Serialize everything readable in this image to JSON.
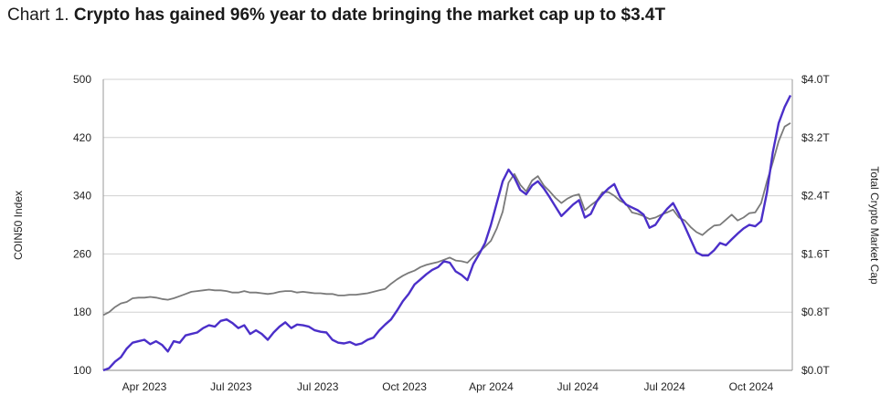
{
  "title": {
    "prefix": "Chart 1.",
    "headline": "Crypto has gained 96% year to date bringing the market cap up to $3.4T"
  },
  "chart_data": {
    "type": "line",
    "title": "Crypto has gained 96% year to date bringing the market cap up to $3.4T",
    "ylabel": "COIN50 Index",
    "y2label": "Total Crypto Market Cap",
    "ylim": [
      100,
      500
    ],
    "y2lim": [
      0.0,
      4.0
    ],
    "yticks": [
      "100",
      "180",
      "260",
      "340",
      "420",
      "500"
    ],
    "y2ticks": [
      "$0.0T",
      "$0.8T",
      "$1.6T",
      "$2.4T",
      "$3.2T",
      "$4.0T"
    ],
    "xticks": [
      "Apr 2023",
      "Jul 2023",
      "Jul 2023",
      "Oct 2023",
      "Apr 2024",
      "Jul 2024",
      "Jul 2024",
      "Oct 2024"
    ],
    "grid": "horizontal",
    "series_colors": [
      "#4b2fc9",
      "#7a7a7a"
    ],
    "series": [
      {
        "axis": "left",
        "values": [
          100,
          103,
          112,
          118,
          130,
          138,
          140,
          142,
          136,
          140,
          135,
          126,
          140,
          138,
          148,
          150,
          152,
          158,
          162,
          160,
          168,
          170,
          165,
          158,
          162,
          150,
          155,
          150,
          142,
          152,
          160,
          166,
          158,
          163,
          162,
          160,
          155,
          153,
          152,
          142,
          138,
          137,
          139,
          135,
          137,
          142,
          145,
          155,
          163,
          170,
          182,
          195,
          205,
          218,
          225,
          232,
          238,
          242,
          250,
          248,
          236,
          231,
          224,
          246,
          260,
          275,
          300,
          330,
          360,
          376,
          365,
          348,
          342,
          354,
          360,
          350,
          338,
          325,
          312,
          320,
          328,
          334,
          310,
          315,
          332,
          342,
          350,
          356,
          338,
          328,
          324,
          320,
          314,
          296,
          300,
          312,
          322,
          330,
          315,
          298,
          280,
          262,
          258,
          258,
          265,
          275,
          272,
          280,
          288,
          295,
          300,
          298,
          305,
          345,
          400,
          440,
          462,
          478
        ]
      },
      {
        "axis": "right",
        "values": [
          0.76,
          0.8,
          0.87,
          0.92,
          0.94,
          0.99,
          1.0,
          1.0,
          1.01,
          1.0,
          0.98,
          0.97,
          0.99,
          1.02,
          1.05,
          1.08,
          1.09,
          1.1,
          1.11,
          1.1,
          1.1,
          1.09,
          1.07,
          1.07,
          1.09,
          1.07,
          1.07,
          1.06,
          1.05,
          1.06,
          1.08,
          1.09,
          1.09,
          1.07,
          1.08,
          1.07,
          1.06,
          1.06,
          1.05,
          1.05,
          1.03,
          1.03,
          1.04,
          1.04,
          1.05,
          1.06,
          1.08,
          1.1,
          1.12,
          1.19,
          1.25,
          1.3,
          1.34,
          1.37,
          1.42,
          1.45,
          1.47,
          1.49,
          1.52,
          1.55,
          1.51,
          1.5,
          1.48,
          1.56,
          1.63,
          1.7,
          1.78,
          1.95,
          2.18,
          2.58,
          2.7,
          2.55,
          2.46,
          2.61,
          2.67,
          2.54,
          2.46,
          2.37,
          2.3,
          2.36,
          2.4,
          2.42,
          2.2,
          2.27,
          2.33,
          2.45,
          2.45,
          2.4,
          2.33,
          2.29,
          2.17,
          2.15,
          2.12,
          2.08,
          2.1,
          2.14,
          2.17,
          2.21,
          2.1,
          2.06,
          1.97,
          1.9,
          1.86,
          1.93,
          1.99,
          2.0,
          2.07,
          2.14,
          2.06,
          2.1,
          2.16,
          2.17,
          2.3,
          2.6,
          2.86,
          3.15,
          3.35,
          3.4
        ]
      }
    ]
  }
}
